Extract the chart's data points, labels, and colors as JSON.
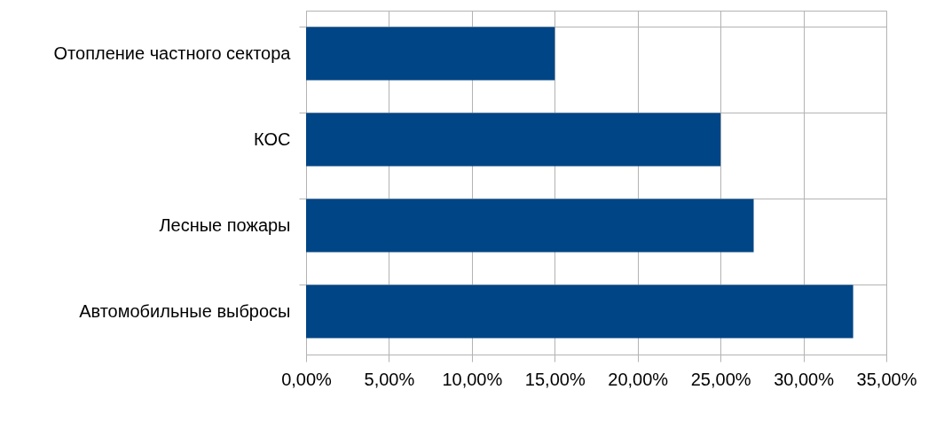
{
  "chart_data": {
    "type": "bar",
    "orientation": "horizontal",
    "categories": [
      "Отопление частного сектора",
      "КОС",
      "Лесные пожары",
      "Автомобильные выбросы"
    ],
    "values": [
      15,
      25,
      27,
      33
    ],
    "color": "#004586",
    "xlim": [
      0,
      35
    ],
    "xticks": [
      {
        "value": 0,
        "label": "0,00%"
      },
      {
        "value": 5,
        "label": "5,00%"
      },
      {
        "value": 10,
        "label": "10,00%"
      },
      {
        "value": 15,
        "label": "15,00%"
      },
      {
        "value": 20,
        "label": "20,00%"
      },
      {
        "value": 25,
        "label": "25,00%"
      },
      {
        "value": 30,
        "label": "30,00%"
      },
      {
        "value": 35,
        "label": "35,00%"
      }
    ],
    "grid": true
  }
}
